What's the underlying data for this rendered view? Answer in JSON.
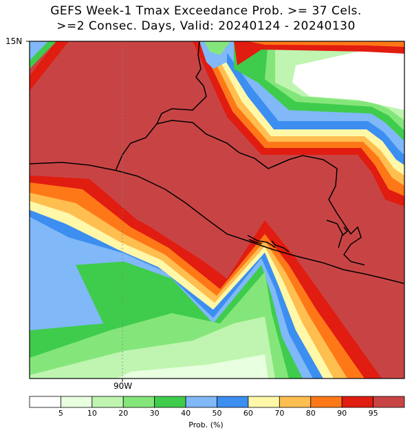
{
  "title_line1": "GEFS Week-1 Tmax Exceedance Prob. >= 37 Cels.",
  "title_line2": ">=2 Consec. Days, Valid: 20240124 - 20240130",
  "lat_label": "15N",
  "lon_label": "90W",
  "colorbar": {
    "title": "Prob. (%)",
    "ticks": [
      "5",
      "10",
      "20",
      "30",
      "40",
      "50",
      "60",
      "70",
      "80",
      "90",
      "95"
    ],
    "colors": [
      "#ffffff",
      "#e8ffe0",
      "#bff5b0",
      "#84e67a",
      "#3fcc4c",
      "#80b8f8",
      "#3c8ef0",
      "#fff8a8",
      "#ffbe50",
      "#ff7818",
      "#e11c10",
      "#c84444"
    ]
  }
}
